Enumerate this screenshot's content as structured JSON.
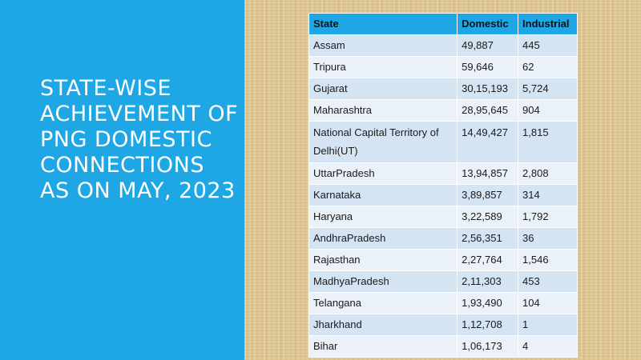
{
  "title": "STATE-WISE ACHIEVEMENT OF PNG DOMESTIC CONNECTIONS AS ON MAY, 2023",
  "colors": {
    "left_panel": "#1ea7e4",
    "header_row": "#1ea7e4",
    "row_odd": "#d4e4f2",
    "row_even": "#eaf1f8"
  },
  "table": {
    "headers": [
      "State",
      "Domestic",
      "Industrial"
    ],
    "rows": [
      [
        "Assam",
        "49,887",
        "445"
      ],
      [
        "Tripura",
        "59,646",
        "62"
      ],
      [
        "Gujarat",
        "30,15,193",
        "5,724"
      ],
      [
        "Maharashtra",
        "28,95,645",
        "904"
      ],
      [
        "National Capital Territory of Delhi(UT)",
        "14,49,427",
        "1,815"
      ],
      [
        "UttarPradesh",
        "13,94,857",
        "2,808"
      ],
      [
        "Karnataka",
        "3,89,857",
        "314"
      ],
      [
        "Haryana",
        "3,22,589",
        "1,792"
      ],
      [
        "AndhraPradesh",
        "2,56,351",
        "36"
      ],
      [
        "Rajasthan",
        "2,27,764",
        "1,546"
      ],
      [
        "MadhyaPradesh",
        "2,11,303",
        "453"
      ],
      [
        "Telangana",
        "1,93,490",
        "104"
      ],
      [
        "Jharkhand",
        "1,12,708",
        "1"
      ],
      [
        "Bihar",
        "1,06,173",
        "4"
      ]
    ]
  }
}
